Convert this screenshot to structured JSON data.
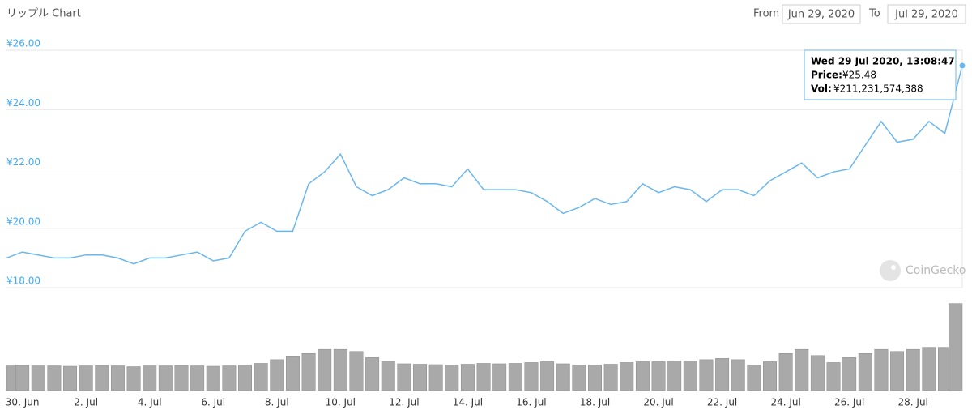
{
  "header": {
    "title": "リップル Chart",
    "from_label": "From",
    "from": "Jun 29, 2020",
    "to_label": "To",
    "to": "Jul 29, 2020"
  },
  "watermark": "CoinGecko",
  "tooltip": {
    "title": "Wed 29 Jul 2020, 13:08:47",
    "price_label": "Price:",
    "price": "¥25.48",
    "vol_label": "Vol:",
    "vol": "¥211,231,574,388"
  },
  "chart_data": [
    {
      "type": "line",
      "x": [
        "2020-06-29T12:00",
        "2020-06-30T00:00",
        "2020-06-30T12:00",
        "2020-07-01T00:00",
        "2020-07-01T12:00",
        "2020-07-02T00:00",
        "2020-07-02T12:00",
        "2020-07-03T00:00",
        "2020-07-03T12:00",
        "2020-07-04T00:00",
        "2020-07-04T12:00",
        "2020-07-05T00:00",
        "2020-07-05T12:00",
        "2020-07-06T00:00",
        "2020-07-06T12:00",
        "2020-07-07T00:00",
        "2020-07-07T12:00",
        "2020-07-08T00:00",
        "2020-07-08T12:00",
        "2020-07-09T00:00",
        "2020-07-09T12:00",
        "2020-07-10T00:00",
        "2020-07-10T12:00",
        "2020-07-11T00:00",
        "2020-07-11T12:00",
        "2020-07-12T00:00",
        "2020-07-12T12:00",
        "2020-07-13T00:00",
        "2020-07-13T12:00",
        "2020-07-14T00:00",
        "2020-07-14T12:00",
        "2020-07-15T00:00",
        "2020-07-15T12:00",
        "2020-07-16T00:00",
        "2020-07-16T12:00",
        "2020-07-17T00:00",
        "2020-07-17T12:00",
        "2020-07-18T00:00",
        "2020-07-18T12:00",
        "2020-07-19T00:00",
        "2020-07-19T12:00",
        "2020-07-20T00:00",
        "2020-07-20T12:00",
        "2020-07-21T00:00",
        "2020-07-21T12:00",
        "2020-07-22T00:00",
        "2020-07-22T12:00",
        "2020-07-23T00:00",
        "2020-07-23T12:00",
        "2020-07-24T00:00",
        "2020-07-24T12:00",
        "2020-07-25T00:00",
        "2020-07-25T12:00",
        "2020-07-26T00:00",
        "2020-07-26T12:00",
        "2020-07-27T00:00",
        "2020-07-27T12:00",
        "2020-07-28T00:00",
        "2020-07-28T12:00",
        "2020-07-29T00:00",
        "2020-07-29T13:08:47"
      ],
      "series": [
        {
          "name": "Price",
          "color": "#6ab7ee",
          "values": [
            19.0,
            19.2,
            19.1,
            19.0,
            19.0,
            19.1,
            19.1,
            19.0,
            18.8,
            19.0,
            19.0,
            19.1,
            19.2,
            18.9,
            19.0,
            19.9,
            20.2,
            19.9,
            19.9,
            21.5,
            21.9,
            22.5,
            21.4,
            21.1,
            21.3,
            21.7,
            21.5,
            21.5,
            21.4,
            22.0,
            21.3,
            21.3,
            21.3,
            21.2,
            20.9,
            20.5,
            20.7,
            21.0,
            20.8,
            20.9,
            21.5,
            21.2,
            21.4,
            21.3,
            20.9,
            21.3,
            21.3,
            21.1,
            21.6,
            21.9,
            22.2,
            21.7,
            21.9,
            22.0,
            22.8,
            23.6,
            22.9,
            23.0,
            23.6,
            23.2,
            25.48
          ]
        }
      ],
      "xlim": [
        "2020-06-29T12:00",
        "2020-07-29T13:08:47"
      ],
      "xticks": [
        {
          "value": "2020-06-30T00:00",
          "label": "30. Jun"
        },
        {
          "value": "2020-07-02T00:00",
          "label": "2. Jul"
        },
        {
          "value": "2020-07-04T00:00",
          "label": "4. Jul"
        },
        {
          "value": "2020-07-06T00:00",
          "label": "6. Jul"
        },
        {
          "value": "2020-07-08T00:00",
          "label": "8. Jul"
        },
        {
          "value": "2020-07-10T00:00",
          "label": "10. Jul"
        },
        {
          "value": "2020-07-12T00:00",
          "label": "12. Jul"
        },
        {
          "value": "2020-07-14T00:00",
          "label": "14. Jul"
        },
        {
          "value": "2020-07-16T00:00",
          "label": "16. Jul"
        },
        {
          "value": "2020-07-18T00:00",
          "label": "18. Jul"
        },
        {
          "value": "2020-07-20T00:00",
          "label": "20. Jul"
        },
        {
          "value": "2020-07-22T00:00",
          "label": "22. Jul"
        },
        {
          "value": "2020-07-24T00:00",
          "label": "24. Jul"
        },
        {
          "value": "2020-07-26T00:00",
          "label": "26. Jul"
        },
        {
          "value": "2020-07-28T00:00",
          "label": "28. Jul"
        }
      ],
      "ylim": [
        18,
        26
      ],
      "yticks": [
        {
          "value": 18,
          "label": "¥18.00"
        },
        {
          "value": 20,
          "label": "¥20.00"
        },
        {
          "value": 22,
          "label": "¥22.00"
        },
        {
          "value": 24,
          "label": "¥24.00"
        },
        {
          "value": 26,
          "label": "¥26.00"
        }
      ],
      "grid": true
    },
    {
      "type": "bar",
      "x": [
        "2020-06-29T12:00",
        "2020-06-30T00:00",
        "2020-06-30T12:00",
        "2020-07-01T00:00",
        "2020-07-01T12:00",
        "2020-07-02T00:00",
        "2020-07-02T12:00",
        "2020-07-03T00:00",
        "2020-07-03T12:00",
        "2020-07-04T00:00",
        "2020-07-04T12:00",
        "2020-07-05T00:00",
        "2020-07-05T12:00",
        "2020-07-06T00:00",
        "2020-07-06T12:00",
        "2020-07-07T00:00",
        "2020-07-07T12:00",
        "2020-07-08T00:00",
        "2020-07-08T12:00",
        "2020-07-09T00:00",
        "2020-07-09T12:00",
        "2020-07-10T00:00",
        "2020-07-10T12:00",
        "2020-07-11T00:00",
        "2020-07-11T12:00",
        "2020-07-12T00:00",
        "2020-07-12T12:00",
        "2020-07-13T00:00",
        "2020-07-13T12:00",
        "2020-07-14T00:00",
        "2020-07-14T12:00",
        "2020-07-15T00:00",
        "2020-07-15T12:00",
        "2020-07-16T00:00",
        "2020-07-16T12:00",
        "2020-07-17T00:00",
        "2020-07-17T12:00",
        "2020-07-18T00:00",
        "2020-07-18T12:00",
        "2020-07-19T00:00",
        "2020-07-19T12:00",
        "2020-07-20T00:00",
        "2020-07-20T12:00",
        "2020-07-21T00:00",
        "2020-07-21T12:00",
        "2020-07-22T00:00",
        "2020-07-22T12:00",
        "2020-07-23T00:00",
        "2020-07-23T12:00",
        "2020-07-24T00:00",
        "2020-07-24T12:00",
        "2020-07-25T00:00",
        "2020-07-25T12:00",
        "2020-07-26T00:00",
        "2020-07-26T12:00",
        "2020-07-27T00:00",
        "2020-07-27T12:00",
        "2020-07-28T00:00",
        "2020-07-28T12:00",
        "2020-07-29T00:00",
        "2020-07-29T13:08:47"
      ],
      "series": [
        {
          "name": "Vol",
          "color": "#a9a9a9",
          "values": [
            60000000000.0,
            61000000000.0,
            60000000000.0,
            60000000000.0,
            59000000000.0,
            60000000000.0,
            61000000000.0,
            60000000000.0,
            58000000000.0,
            60000000000.0,
            60000000000.0,
            61000000000.0,
            60000000000.0,
            59000000000.0,
            60000000000.0,
            62000000000.0,
            66000000000.0,
            75000000000.0,
            82000000000.0,
            90000000000.0,
            100000000000.0,
            100000000000.0,
            95000000000.0,
            80000000000.0,
            70000000000.0,
            65000000000.0,
            64000000000.0,
            63000000000.0,
            62000000000.0,
            64000000000.0,
            66000000000.0,
            65000000000.0,
            66000000000.0,
            68000000000.0,
            70000000000.0,
            65000000000.0,
            62000000000.0,
            62000000000.0,
            64000000000.0,
            68000000000.0,
            70000000000.0,
            70000000000.0,
            72000000000.0,
            72000000000.0,
            75000000000.0,
            78000000000.0,
            75000000000.0,
            62000000000.0,
            70000000000.0,
            90000000000.0,
            100000000000.0,
            85000000000.0,
            68000000000.0,
            80000000000.0,
            90000000000.0,
            100000000000.0,
            95000000000.0,
            100000000000.0,
            105000000000.0,
            105000000000.0,
            211231574388
          ]
        }
      ],
      "xlim": [
        "2020-06-29T12:00",
        "2020-07-29T13:08:47"
      ],
      "ylim": [
        0,
        240000000000.0
      ]
    }
  ]
}
